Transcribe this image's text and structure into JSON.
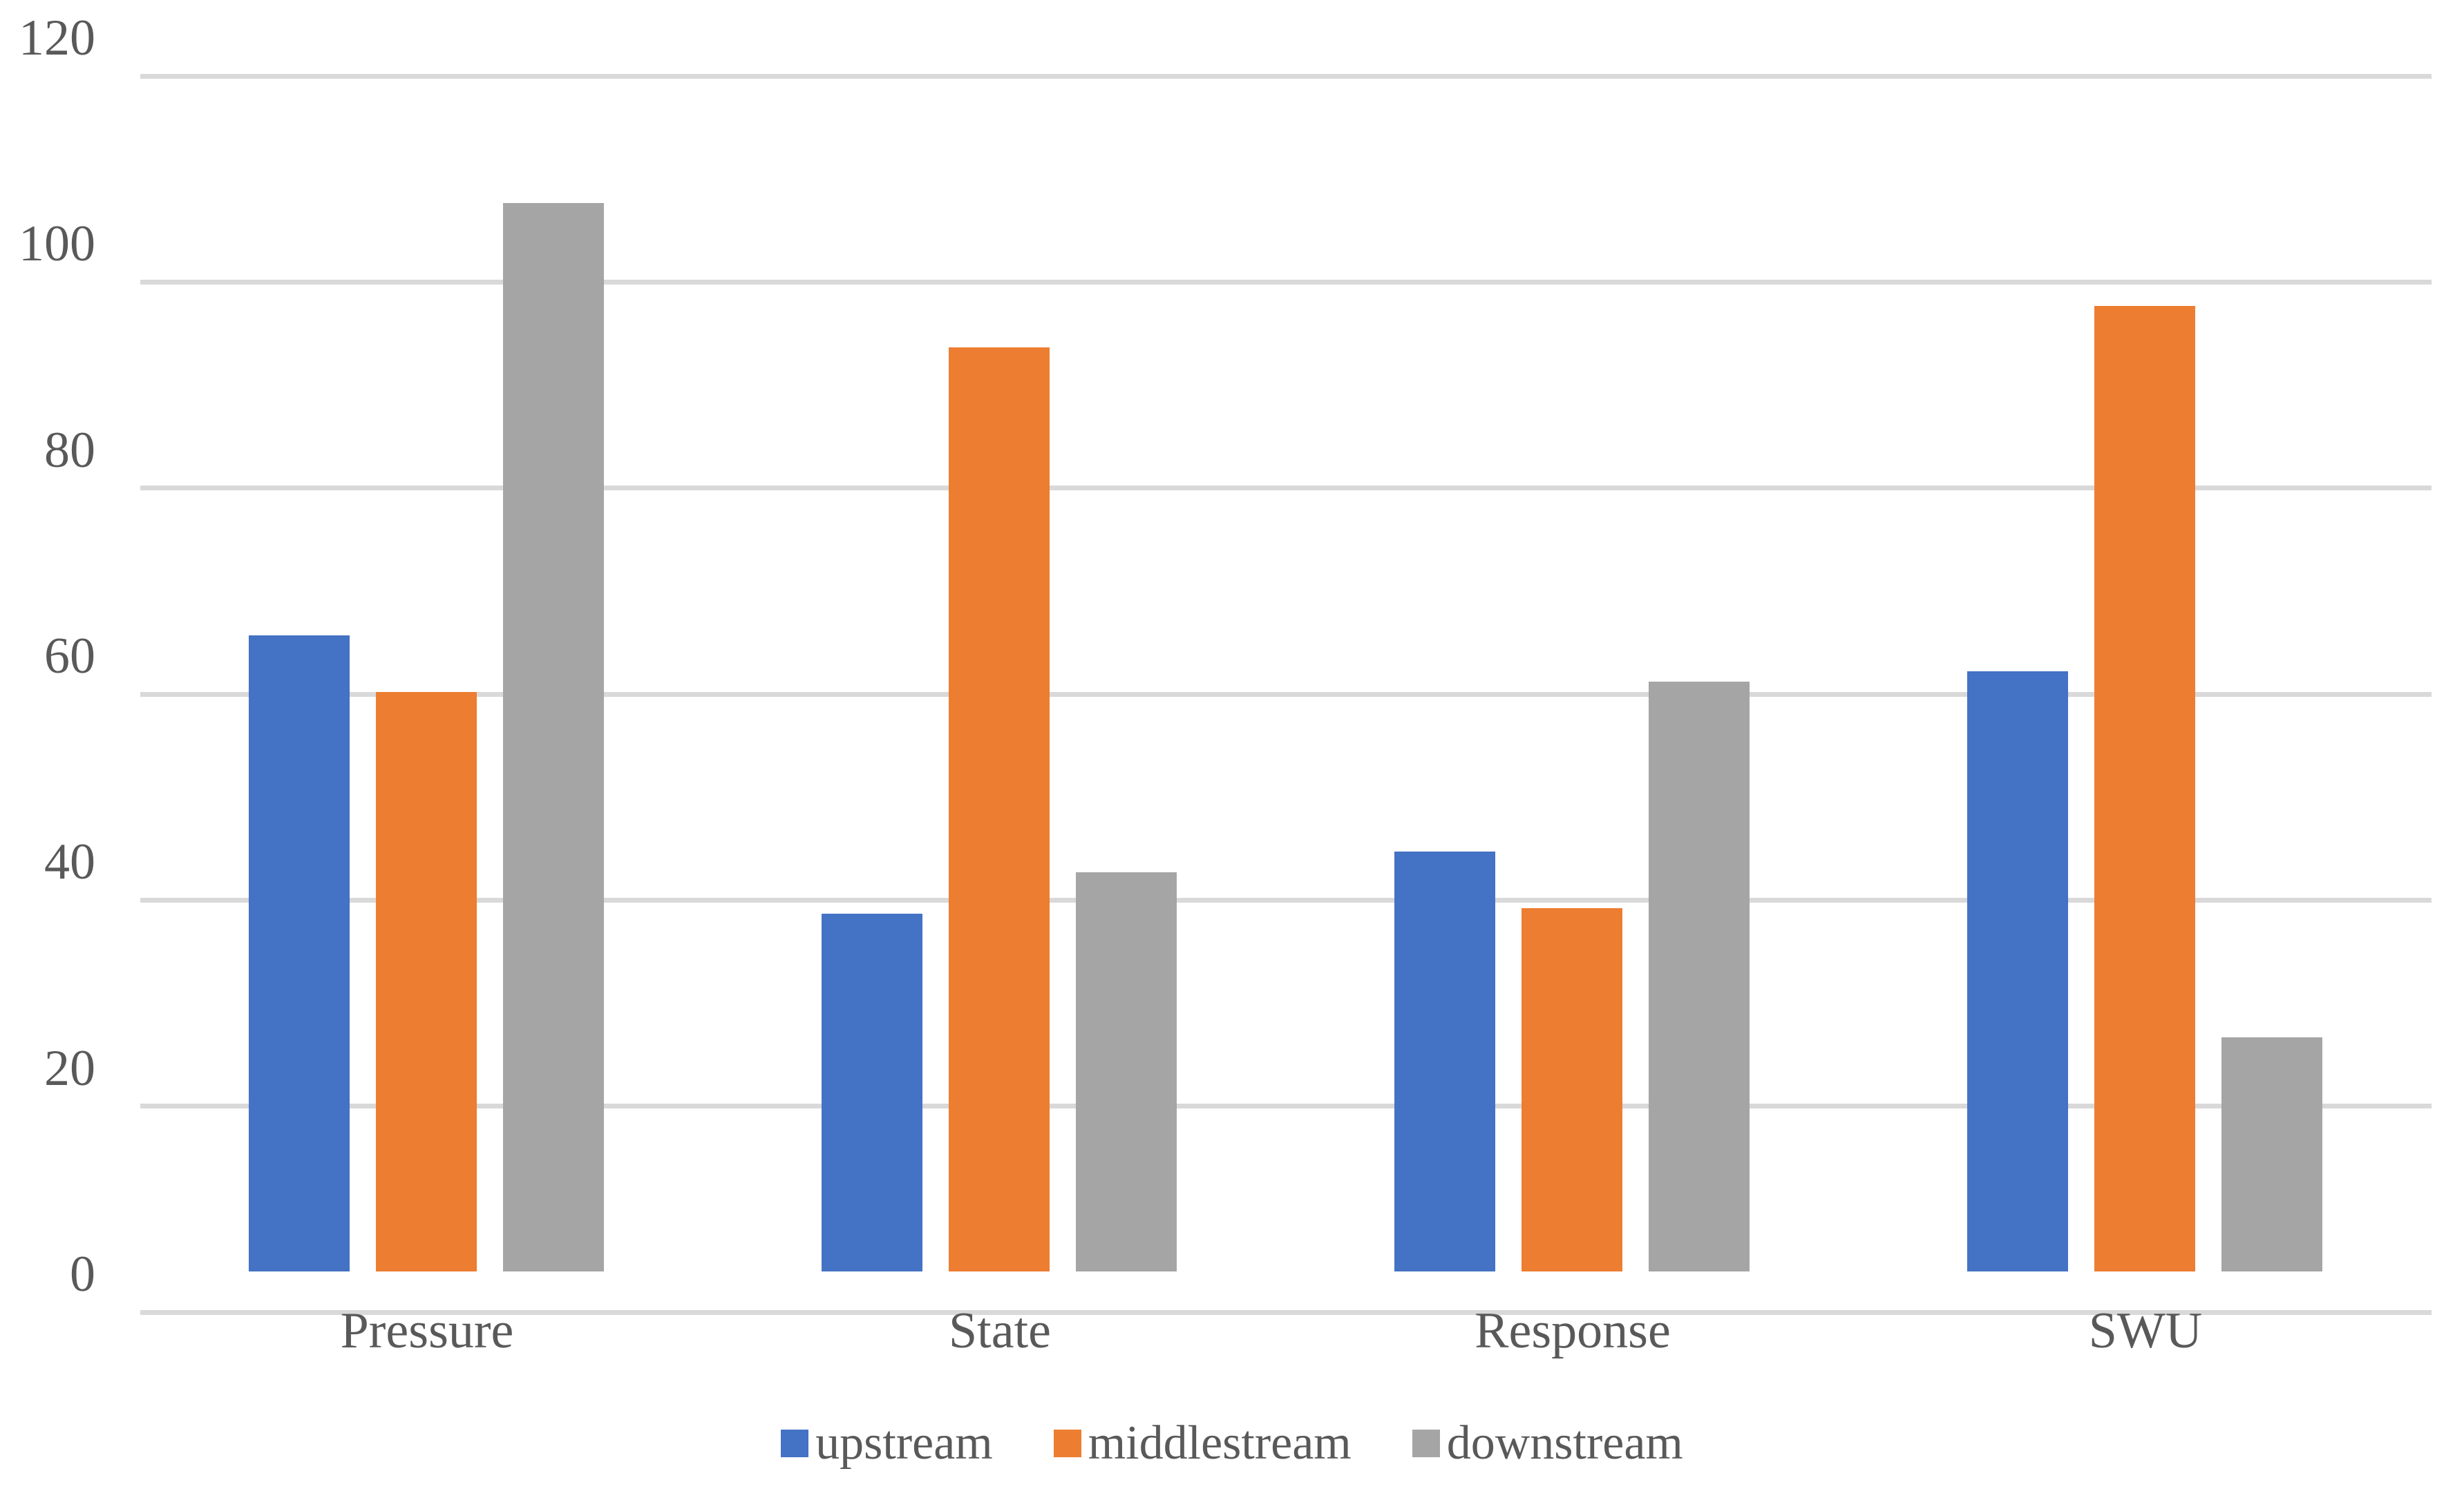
{
  "chart_data": {
    "type": "bar",
    "title": "",
    "xlabel": "",
    "ylabel": "",
    "categories": [
      "Pressure",
      "State",
      "Response",
      "SWU"
    ],
    "series": [
      {
        "name": "upstream",
        "color": "#4472C4",
        "values": [
          62,
          35,
          41,
          58.5
        ]
      },
      {
        "name": "middlestream",
        "color": "#ED7D31",
        "values": [
          56.5,
          90,
          35.5,
          94
        ]
      },
      {
        "name": "downstream",
        "color": "#A5A5A5",
        "values": [
          104,
          39,
          57.5,
          23
        ]
      }
    ],
    "ylim": [
      0,
      120
    ],
    "yticks": [
      0,
      20,
      40,
      60,
      80,
      100,
      120
    ],
    "grid": true,
    "legend_position": "bottom",
    "colors": {
      "gridline": "#D9D9D9",
      "axis_line": "#D9D9D9",
      "label_text": "#595959",
      "background": "#FFFFFF"
    }
  }
}
